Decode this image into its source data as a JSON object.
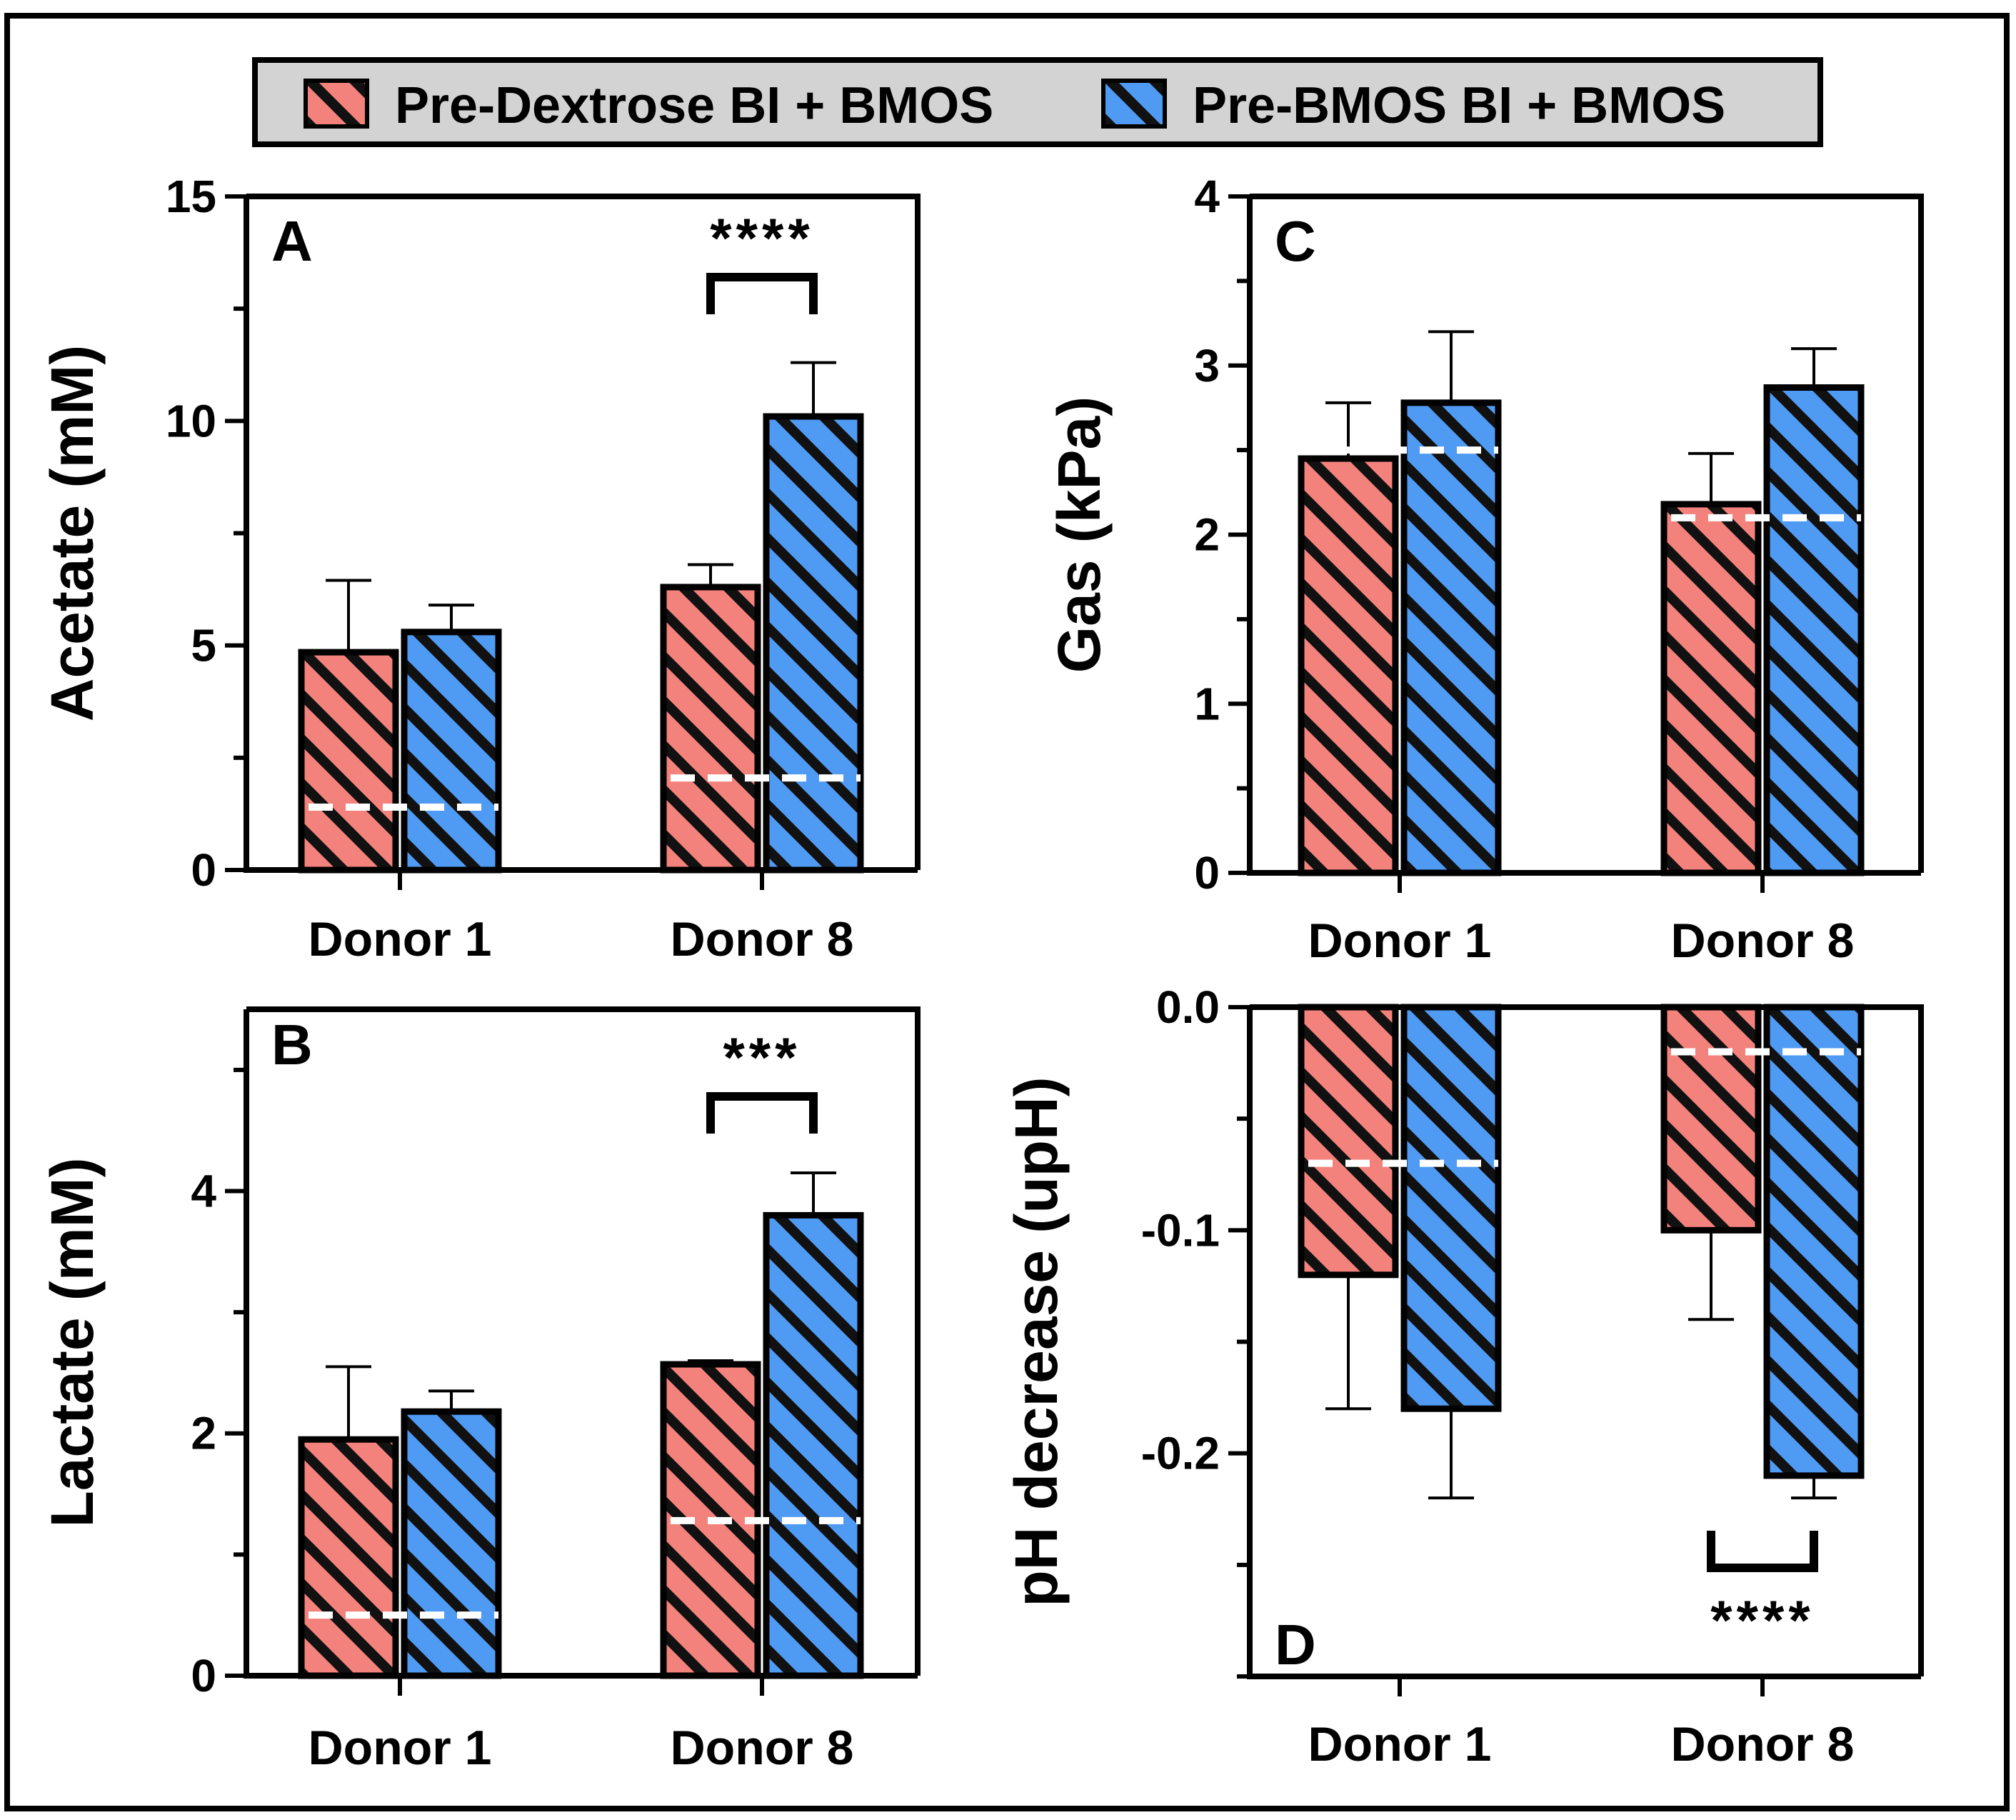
{
  "legend": {
    "items": [
      {
        "label": "Pre-Dextrose BI + BMOS",
        "color": "#F4827C"
      },
      {
        "label": "Pre-BMOS BI + BMOS",
        "color": "#4F9BF4"
      }
    ]
  },
  "chart_data": [
    {
      "panel": "A",
      "type": "bar",
      "categories": [
        "Donor 1",
        "Donor 8"
      ],
      "ylabel": "Acetate (mM)",
      "ylim": [
        0,
        15
      ],
      "yticks": [
        0,
        5,
        10,
        15
      ],
      "series": [
        {
          "name": "Pre-Dextrose BI + BMOS",
          "values": [
            4.85,
            6.3
          ],
          "errors": [
            1.6,
            0.5
          ]
        },
        {
          "name": "Pre-BMOS BI + BMOS",
          "values": [
            5.3,
            10.1
          ],
          "errors": [
            0.6,
            1.2
          ]
        }
      ],
      "baseline": [
        1.4,
        2.05
      ],
      "significance": [
        {
          "category": "Donor 8",
          "label": "****"
        }
      ]
    },
    {
      "panel": "B",
      "type": "bar",
      "categories": [
        "Donor 1",
        "Donor 8"
      ],
      "ylabel": "Lactate (mM)",
      "ylim": [
        0,
        5.5
      ],
      "yticks": [
        0,
        2,
        4
      ],
      "series": [
        {
          "name": "Pre-Dextrose BI + BMOS",
          "values": [
            1.95,
            2.57
          ],
          "errors": [
            0.6,
            0.03
          ]
        },
        {
          "name": "Pre-BMOS BI + BMOS",
          "values": [
            2.18,
            3.8
          ],
          "errors": [
            0.17,
            0.35
          ]
        }
      ],
      "baseline": [
        0.5,
        1.28
      ],
      "significance": [
        {
          "category": "Donor 8",
          "label": "***"
        }
      ]
    },
    {
      "panel": "C",
      "type": "bar",
      "categories": [
        "Donor 1",
        "Donor 8"
      ],
      "ylabel": "Gas (kPa)",
      "ylim": [
        0,
        4
      ],
      "yticks": [
        0,
        1,
        2,
        3,
        4
      ],
      "series": [
        {
          "name": "Pre-Dextrose BI + BMOS",
          "values": [
            2.45,
            2.18
          ],
          "errors": [
            0.33,
            0.3
          ]
        },
        {
          "name": "Pre-BMOS BI + BMOS",
          "values": [
            2.78,
            2.87
          ],
          "errors": [
            0.42,
            0.23
          ]
        }
      ],
      "baseline": [
        2.5,
        2.1
      ],
      "significance": []
    },
    {
      "panel": "D",
      "type": "bar",
      "categories": [
        "Donor 1",
        "Donor 8"
      ],
      "ylabel": "pH decrease (upH)",
      "ylim": [
        -0.3,
        0.0
      ],
      "yticks": [
        0.0,
        -0.1,
        -0.2
      ],
      "ytick_labels": [
        "0.0",
        "-0.1",
        "-0.2"
      ],
      "series": [
        {
          "name": "Pre-Dextrose BI + BMOS",
          "values": [
            -0.12,
            -0.1
          ],
          "errors": [
            0.06,
            0.04
          ]
        },
        {
          "name": "Pre-BMOS BI + BMOS",
          "values": [
            -0.18,
            -0.21
          ],
          "errors": [
            0.04,
            0.01
          ]
        }
      ],
      "baseline": [
        -0.07,
        -0.02
      ],
      "significance": [
        {
          "category": "Donor 8",
          "label": "****"
        }
      ]
    }
  ]
}
